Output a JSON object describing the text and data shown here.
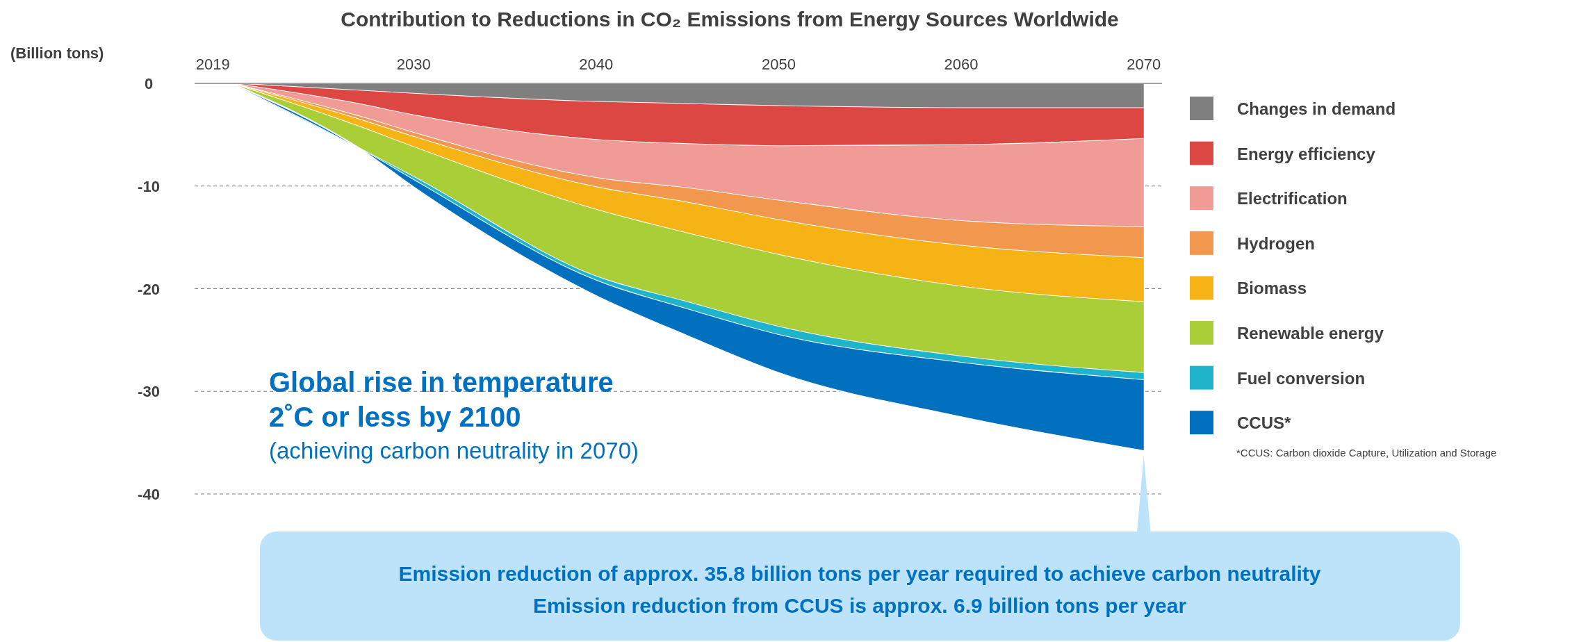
{
  "chart_data": {
    "type": "area",
    "stacked": true,
    "title": "Contribution to Reductions in CO₂ Emissions from Energy Sources Worldwide",
    "ylabel": "(Billion tons)",
    "x": [
      2020,
      2027,
      2030,
      2040,
      2045,
      2050,
      2060,
      2070
    ],
    "xlim": [
      2018,
      2071
    ],
    "xticks": [
      2019,
      2030,
      2040,
      2050,
      2060,
      2070
    ],
    "ylim": [
      -40,
      0
    ],
    "yticks": [
      0,
      -10,
      -20,
      -30,
      -40
    ],
    "grid": "y",
    "legend": "right",
    "series": [
      {
        "name": "Changes in demand",
        "color": "#7f7f7f",
        "values": [
          0,
          -0.7,
          -1.0,
          -1.8,
          -2.0,
          -2.2,
          -2.4,
          -2.4
        ]
      },
      {
        "name": "Energy efficiency",
        "color": "#dc4643",
        "values": [
          0,
          -1.3,
          -2.1,
          -3.7,
          -3.9,
          -3.9,
          -3.6,
          -3.0
        ]
      },
      {
        "name": "Electrification",
        "color": "#f09b96",
        "values": [
          0,
          -1.2,
          -1.7,
          -3.7,
          -4.3,
          -5.3,
          -7.4,
          -8.6
        ]
      },
      {
        "name": "Hydrogen",
        "color": "#f2974e",
        "values": [
          0,
          -0.3,
          -0.4,
          -0.9,
          -1.4,
          -1.9,
          -2.4,
          -3.0
        ]
      },
      {
        "name": "Biomass",
        "color": "#f5b316",
        "values": [
          0,
          -0.7,
          -1.0,
          -2.2,
          -3.0,
          -3.4,
          -4.0,
          -4.3
        ]
      },
      {
        "name": "Renewable energy",
        "color": "#a9ce38",
        "values": [
          0,
          -2.1,
          -2.9,
          -6.5,
          -6.7,
          -7.0,
          -6.8,
          -6.9
        ]
      },
      {
        "name": "Fuel conversion",
        "color": "#1eb4cc",
        "values": [
          0,
          0,
          -0.3,
          -0.4,
          -0.7,
          -0.8,
          -0.6,
          -0.7
        ]
      },
      {
        "name": "CCUS*",
        "color": "#0070bf",
        "values": [
          0,
          0,
          -0.7,
          -1.5,
          -2.6,
          -3.7,
          -5.3,
          -6.9
        ]
      }
    ],
    "annotations": [
      "Global rise in temperature",
      "2˚C or less by 2100",
      "(achieving carbon neutrality in 2070)",
      "Emission reduction of approx. 35.8 billion tons per year required to achieve carbon neutrality",
      "Emission reduction from CCUS is approx. 6.9 billion tons per year",
      "*CCUS: Carbon dioxide Capture, Utilization and Storage"
    ]
  }
}
